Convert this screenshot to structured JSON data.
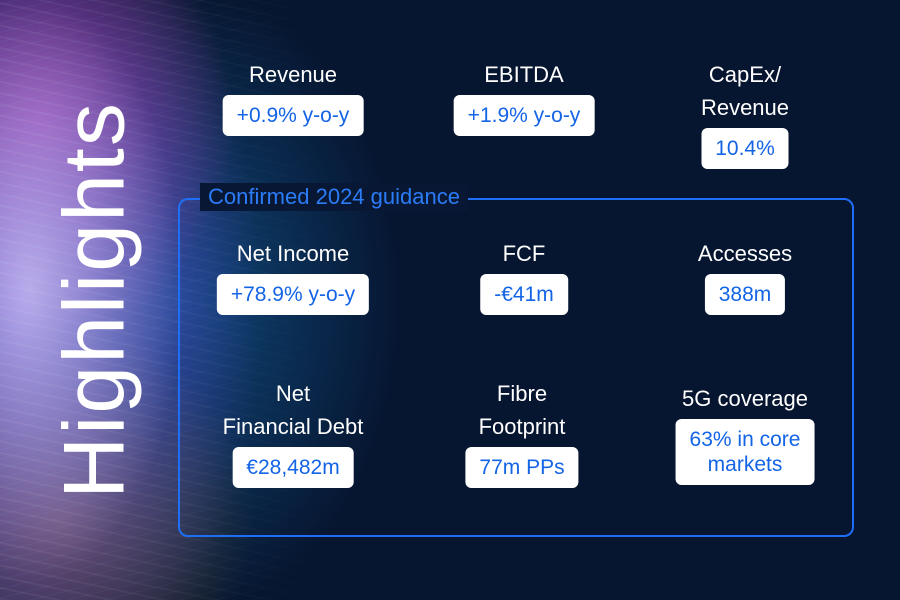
{
  "title": "Highlights",
  "top_metrics": [
    {
      "label": "Revenue",
      "value": "+0.9% y-o-y"
    },
    {
      "label": "EBITDA",
      "value": "+1.9% y-o-y"
    },
    {
      "label": "CapEx/ Revenue",
      "value": "10.4%"
    }
  ],
  "guidance": {
    "title": "Confirmed 2024 guidance",
    "metrics": [
      {
        "label": "Net Income",
        "value": "+78.9% y-o-y"
      },
      {
        "label": "FCF",
        "value": "-€41m"
      },
      {
        "label": "Accesses",
        "value": "388m"
      },
      {
        "label": "Net\nFinancial Debt",
        "value": "€28,482m"
      },
      {
        "label": "Fibre\nFootprint",
        "value": "77m PPs"
      },
      {
        "label": "5G coverage",
        "value": "63% in core\nmarkets"
      }
    ]
  },
  "colors": {
    "background": "#061530",
    "accent_blue": "#1e6ff5",
    "value_text": "#1464e6",
    "badge_bg": "#ffffff"
  }
}
